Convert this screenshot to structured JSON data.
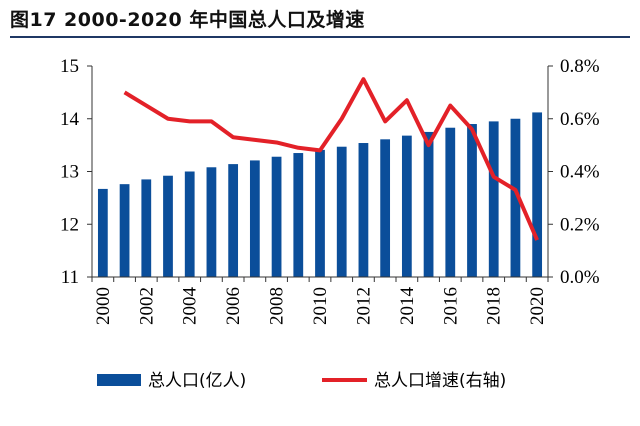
{
  "figure": {
    "title": "图17  2000-2020 年中国总人口及增速"
  },
  "colors": {
    "bar": "#0b4e9a",
    "line": "#e32128",
    "title_rule": "#1f3864"
  },
  "chart_data": {
    "type": "bar+line",
    "title": "图17  2000-2020 年中国总人口及增速",
    "categories": [
      "2000",
      "2001",
      "2002",
      "2003",
      "2004",
      "2005",
      "2006",
      "2007",
      "2008",
      "2009",
      "2010",
      "2011",
      "2012",
      "2013",
      "2014",
      "2015",
      "2016",
      "2017",
      "2018",
      "2019",
      "2020"
    ],
    "x_tick_labels": [
      "2000",
      "2002",
      "2004",
      "2006",
      "2008",
      "2010",
      "2012",
      "2014",
      "2016",
      "2018",
      "2020"
    ],
    "series": [
      {
        "name": "总人口(亿人)",
        "type": "bar",
        "axis": "left",
        "values": [
          12.67,
          12.76,
          12.85,
          12.92,
          13.0,
          13.08,
          13.14,
          13.21,
          13.28,
          13.35,
          13.41,
          13.47,
          13.54,
          13.61,
          13.68,
          13.75,
          13.83,
          13.9,
          13.95,
          14.0,
          14.12
        ]
      },
      {
        "name": "总人口增速(右轴)",
        "type": "line",
        "axis": "right",
        "values": [
          null,
          0.7,
          0.65,
          0.6,
          0.59,
          0.59,
          0.53,
          0.52,
          0.51,
          0.49,
          0.48,
          0.6,
          0.75,
          0.59,
          0.67,
          0.5,
          0.65,
          0.56,
          0.38,
          0.33,
          0.14
        ]
      }
    ],
    "y_left": {
      "ylim": [
        11,
        15
      ],
      "ticks": [
        "11",
        "12",
        "13",
        "14",
        "15"
      ]
    },
    "y_right": {
      "ylim": [
        0,
        0.8
      ],
      "ticks": [
        "0.0%",
        "0.2%",
        "0.4%",
        "0.6%",
        "0.8%"
      ]
    },
    "grid": false,
    "legend_position": "bottom"
  }
}
